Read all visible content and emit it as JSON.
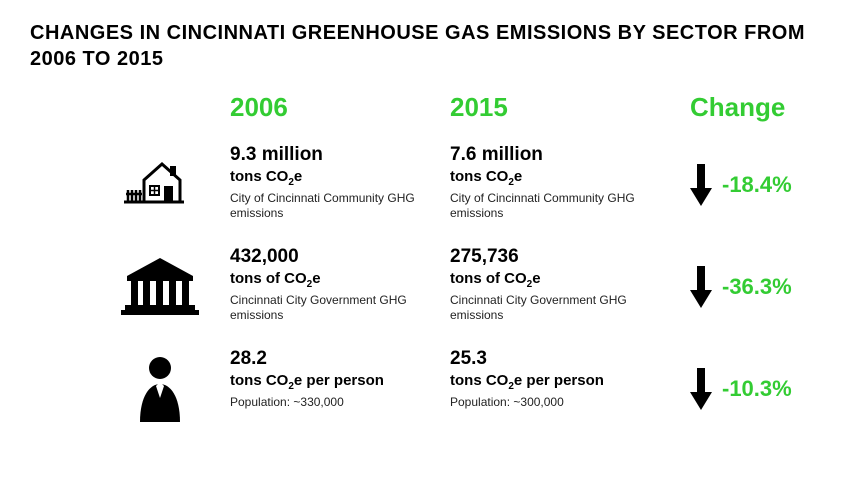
{
  "title": "CHANGES IN CINCINNATI GREENHOUSE GAS EMISSIONS BY SECTOR FROM 2006 TO 2015",
  "colors": {
    "text": "#000000",
    "accent": "#33cc33",
    "background": "#ffffff"
  },
  "headers": {
    "y2006": "2006",
    "y2015": "2015",
    "change": "Change"
  },
  "rows": [
    {
      "icon": "house-icon",
      "y2006": {
        "value": "9.3 million",
        "unit_html": "tons CO<sub>2</sub>e",
        "desc": "City of Cincinnati Community GHG emissions"
      },
      "y2015": {
        "value": "7.6 million",
        "unit_html": "tons CO<sub>2</sub>e",
        "desc": "City of Cincinnati Community GHG emissions"
      },
      "change": "-18.4%"
    },
    {
      "icon": "government-icon",
      "y2006": {
        "value": "432,000",
        "unit_html": "tons of CO<sub>2</sub>e",
        "desc": "Cincinnati City Government GHG emissions"
      },
      "y2015": {
        "value": "275,736",
        "unit_html": "tons of CO<sub>2</sub>e",
        "desc": "Cincinnati City Government GHG emissions"
      },
      "change": "-36.3%"
    },
    {
      "icon": "person-icon",
      "y2006": {
        "value": "28.2",
        "unit_html": "tons CO<sub>2</sub>e per person",
        "desc": "Population: ~330,000"
      },
      "y2015": {
        "value": "25.3",
        "unit_html": "tons CO<sub>2</sub>e per person",
        "desc": "Population: ~300,000"
      },
      "change": "-10.3%"
    }
  ]
}
